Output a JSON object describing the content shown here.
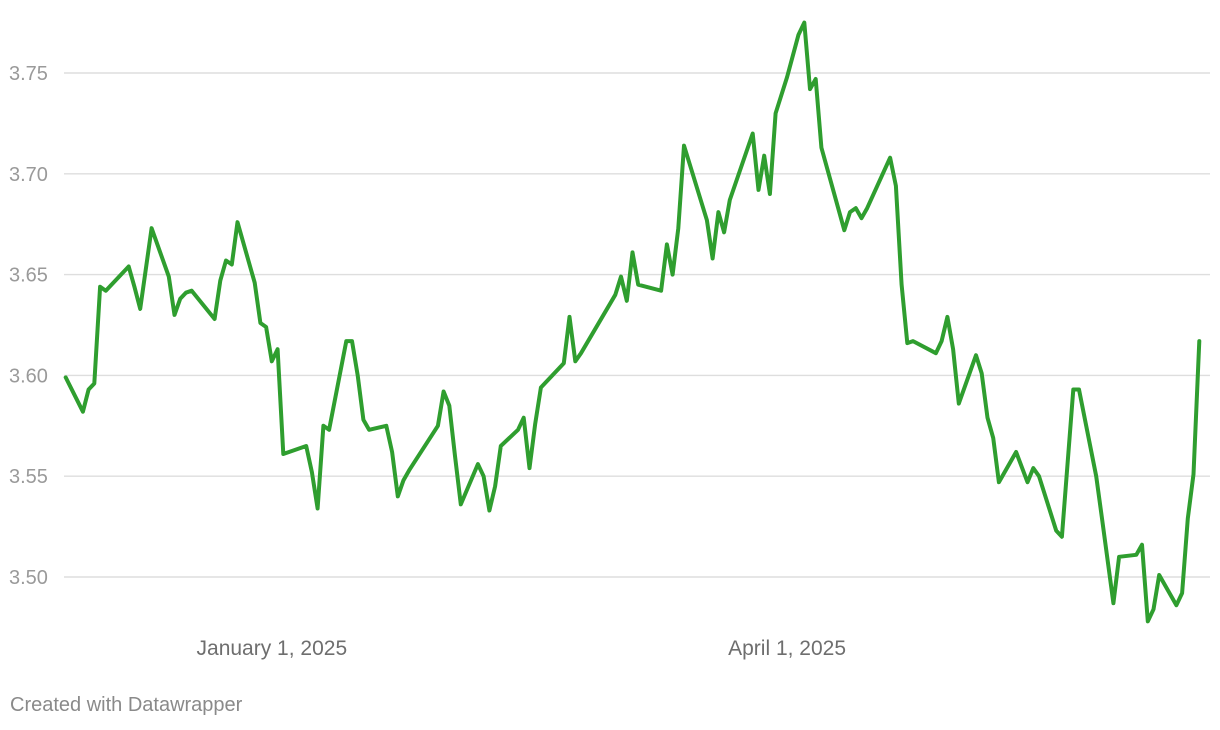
{
  "chart_data": {
    "type": "line",
    "title": "",
    "xlabel": "",
    "ylabel": "",
    "ylim": [
      3.47,
      3.78
    ],
    "xlim": [
      "2024-11-25",
      "2025-06-13"
    ],
    "y_ticks": [
      {
        "value": 3.5,
        "label": "3.50"
      },
      {
        "value": 3.55,
        "label": "3.55"
      },
      {
        "value": 3.6,
        "label": "3.60"
      },
      {
        "value": 3.65,
        "label": "3.65"
      },
      {
        "value": 3.7,
        "label": "3.70"
      },
      {
        "value": 3.75,
        "label": "3.75"
      }
    ],
    "x_ticks": [
      {
        "value": "2025-01-01",
        "label": "January 1, 2025"
      },
      {
        "value": "2025-04-01",
        "label": "April 1, 2025"
      }
    ],
    "grid": "horizontal",
    "series": [
      {
        "color": "#2f9e2f",
        "points": [
          [
            "2024-11-26",
            3.599
          ],
          [
            "2024-11-29",
            3.582
          ],
          [
            "2024-11-30",
            3.593
          ],
          [
            "2024-12-01",
            3.596
          ],
          [
            "2024-12-02",
            3.644
          ],
          [
            "2024-12-03",
            3.642
          ],
          [
            "2024-12-07",
            3.654
          ],
          [
            "2024-12-08",
            3.644
          ],
          [
            "2024-12-09",
            3.633
          ],
          [
            "2024-12-11",
            3.673
          ],
          [
            "2024-12-14",
            3.649
          ],
          [
            "2024-12-15",
            3.63
          ],
          [
            "2024-12-16",
            3.638
          ],
          [
            "2024-12-17",
            3.641
          ],
          [
            "2024-12-18",
            3.642
          ],
          [
            "2024-12-22",
            3.628
          ],
          [
            "2024-12-23",
            3.647
          ],
          [
            "2024-12-24",
            3.657
          ],
          [
            "2024-12-25",
            3.655
          ],
          [
            "2024-12-26",
            3.676
          ],
          [
            "2024-12-29",
            3.646
          ],
          [
            "2024-12-30",
            3.626
          ],
          [
            "2024-12-31",
            3.624
          ],
          [
            "2025-01-01",
            3.607
          ],
          [
            "2025-01-02",
            3.613
          ],
          [
            "2025-01-03",
            3.561
          ],
          [
            "2025-01-07",
            3.565
          ],
          [
            "2025-01-08",
            3.552
          ],
          [
            "2025-01-09",
            3.534
          ],
          [
            "2025-01-10",
            3.575
          ],
          [
            "2025-01-11",
            3.573
          ],
          [
            "2025-01-14",
            3.617
          ],
          [
            "2025-01-15",
            3.617
          ],
          [
            "2025-01-16",
            3.6
          ],
          [
            "2025-01-17",
            3.578
          ],
          [
            "2025-01-18",
            3.573
          ],
          [
            "2025-01-21",
            3.575
          ],
          [
            "2025-01-22",
            3.562
          ],
          [
            "2025-01-23",
            3.54
          ],
          [
            "2025-01-24",
            3.548
          ],
          [
            "2025-01-25",
            3.553
          ],
          [
            "2025-01-30",
            3.575
          ],
          [
            "2025-01-31",
            3.592
          ],
          [
            "2025-02-01",
            3.585
          ],
          [
            "2025-02-02",
            3.56
          ],
          [
            "2025-02-03",
            3.536
          ],
          [
            "2025-02-06",
            3.556
          ],
          [
            "2025-02-07",
            3.55
          ],
          [
            "2025-02-08",
            3.533
          ],
          [
            "2025-02-09",
            3.545
          ],
          [
            "2025-02-10",
            3.565
          ],
          [
            "2025-02-13",
            3.573
          ],
          [
            "2025-02-14",
            3.579
          ],
          [
            "2025-02-15",
            3.554
          ],
          [
            "2025-02-16",
            3.576
          ],
          [
            "2025-02-17",
            3.594
          ],
          [
            "2025-02-21",
            3.606
          ],
          [
            "2025-02-22",
            3.629
          ],
          [
            "2025-02-23",
            3.607
          ],
          [
            "2025-02-24",
            3.611
          ],
          [
            "2025-03-02",
            3.64
          ],
          [
            "2025-03-03",
            3.649
          ],
          [
            "2025-03-04",
            3.637
          ],
          [
            "2025-03-05",
            3.661
          ],
          [
            "2025-03-06",
            3.645
          ],
          [
            "2025-03-10",
            3.642
          ],
          [
            "2025-03-11",
            3.665
          ],
          [
            "2025-03-12",
            3.65
          ],
          [
            "2025-03-13",
            3.673
          ],
          [
            "2025-03-14",
            3.714
          ],
          [
            "2025-03-18",
            3.677
          ],
          [
            "2025-03-19",
            3.658
          ],
          [
            "2025-03-20",
            3.681
          ],
          [
            "2025-03-21",
            3.671
          ],
          [
            "2025-03-22",
            3.687
          ],
          [
            "2025-03-26",
            3.72
          ],
          [
            "2025-03-27",
            3.692
          ],
          [
            "2025-03-28",
            3.709
          ],
          [
            "2025-03-29",
            3.69
          ],
          [
            "2025-03-30",
            3.73
          ],
          [
            "2025-04-01",
            3.748
          ],
          [
            "2025-04-03",
            3.769
          ],
          [
            "2025-04-04",
            3.775
          ],
          [
            "2025-04-05",
            3.742
          ],
          [
            "2025-04-06",
            3.747
          ],
          [
            "2025-04-07",
            3.713
          ],
          [
            "2025-04-11",
            3.672
          ],
          [
            "2025-04-12",
            3.681
          ],
          [
            "2025-04-13",
            3.683
          ],
          [
            "2025-04-14",
            3.678
          ],
          [
            "2025-04-15",
            3.683
          ],
          [
            "2025-04-19",
            3.708
          ],
          [
            "2025-04-20",
            3.694
          ],
          [
            "2025-04-21",
            3.645
          ],
          [
            "2025-04-22",
            3.616
          ],
          [
            "2025-04-23",
            3.617
          ],
          [
            "2025-04-27",
            3.611
          ],
          [
            "2025-04-28",
            3.617
          ],
          [
            "2025-04-29",
            3.629
          ],
          [
            "2025-04-30",
            3.613
          ],
          [
            "2025-05-01",
            3.586
          ],
          [
            "2025-05-04",
            3.61
          ],
          [
            "2025-05-05",
            3.601
          ],
          [
            "2025-05-06",
            3.579
          ],
          [
            "2025-05-07",
            3.569
          ],
          [
            "2025-05-08",
            3.547
          ],
          [
            "2025-05-11",
            3.562
          ],
          [
            "2025-05-13",
            3.547
          ],
          [
            "2025-05-14",
            3.554
          ],
          [
            "2025-05-15",
            3.55
          ],
          [
            "2025-05-18",
            3.523
          ],
          [
            "2025-05-19",
            3.52
          ],
          [
            "2025-05-21",
            3.593
          ],
          [
            "2025-05-22",
            3.593
          ],
          [
            "2025-05-25",
            3.55
          ],
          [
            "2025-05-26",
            3.529
          ],
          [
            "2025-05-28",
            3.487
          ],
          [
            "2025-05-29",
            3.51
          ],
          [
            "2025-06-01",
            3.511
          ],
          [
            "2025-06-02",
            3.516
          ],
          [
            "2025-06-03",
            3.478
          ],
          [
            "2025-06-04",
            3.484
          ],
          [
            "2025-06-05",
            3.501
          ],
          [
            "2025-06-08",
            3.486
          ],
          [
            "2025-06-09",
            3.492
          ],
          [
            "2025-06-10",
            3.529
          ],
          [
            "2025-06-11",
            3.551
          ],
          [
            "2025-06-12",
            3.617
          ]
        ]
      }
    ]
  },
  "footer": {
    "credit": "Created with Datawrapper"
  }
}
